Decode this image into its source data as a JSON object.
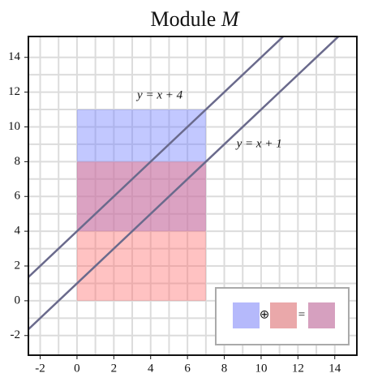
{
  "chart_data": {
    "type": "region",
    "title": "Module",
    "title_symbol": "M",
    "xlim": [
      -2.64,
      15.2
    ],
    "ylim": [
      -3.13,
      15.2
    ],
    "xticks": [
      -2,
      0,
      2,
      4,
      6,
      8,
      10,
      12,
      14
    ],
    "yticks": [
      -2,
      0,
      2,
      4,
      6,
      8,
      10,
      12,
      14
    ],
    "grid": true,
    "minor_grid": true,
    "rects": [
      {
        "x": [
          0,
          7
        ],
        "y": [
          4,
          11
        ],
        "color": "rgba(110,125,255,0.42)"
      },
      {
        "x": [
          0,
          7
        ],
        "y": [
          0,
          8
        ],
        "color": "rgba(255,110,110,0.42)"
      }
    ],
    "lines": [
      {
        "slope": 1,
        "intercept": 4,
        "color": "#6a6a8c",
        "label": "y = x + 4",
        "label_at": [
          4.5,
          11.8
        ]
      },
      {
        "slope": 1,
        "intercept": 1,
        "color": "#6a6a8c",
        "label": "y = x + 1",
        "label_at": [
          9.9,
          9.0
        ]
      }
    ],
    "legend": {
      "position": "lower right",
      "colors": [
        "#b5b9fb",
        "#eaa8aa",
        "#d6a0bf"
      ],
      "symbols": [
        "⊕",
        "="
      ]
    }
  }
}
